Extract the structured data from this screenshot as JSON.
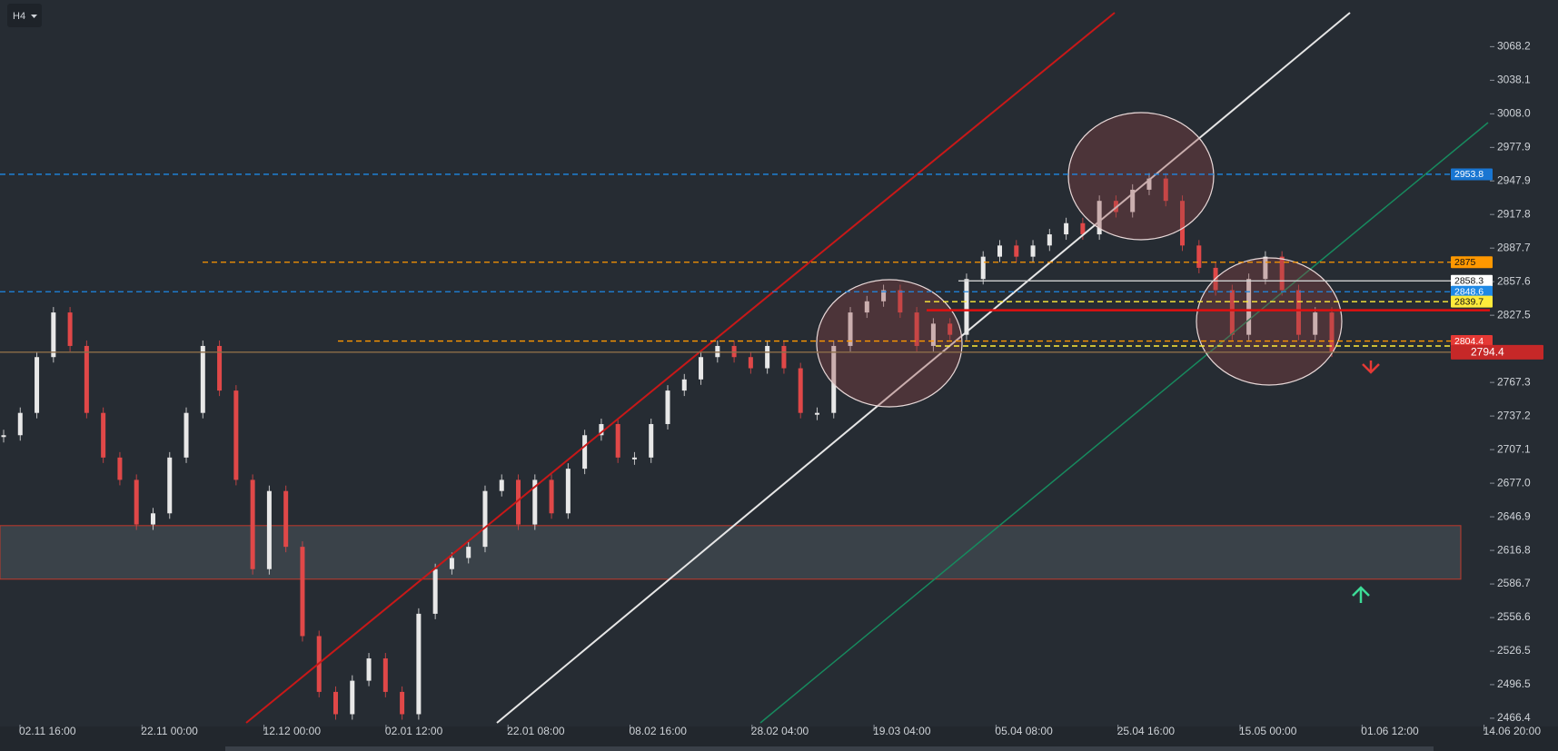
{
  "timeframe": "H4",
  "chart_data": {
    "type": "candlestick",
    "ylim": [
      2459,
      3110
    ],
    "yticks": [
      3068.2,
      3038.1,
      {
        "value": 3008,
        "label": "3008.0"
      },
      2977.9,
      2947.9,
      2917.8,
      2887.7,
      2857.6,
      2827.5,
      2767.3,
      2737.2,
      2707.1,
      {
        "value": 2677,
        "label": "2677.0"
      },
      2646.9,
      2616.8,
      2586.7,
      2556.6,
      2526.5,
      2496.5,
      2466.4
    ],
    "xticks": [
      "02.11 16:00",
      "22.11 00:00",
      "12.12 00:00",
      "02.01 12:00",
      "22.01 08:00",
      "08.02 16:00",
      "28.02 04:00",
      "19.03 04:00",
      "05.04 08:00",
      "25.04 16:00",
      "15.05 00:00",
      "01.06 12:00",
      "14.06 20:00"
    ],
    "up_color": "#e8e8e8",
    "down_color": "#e04848",
    "values": [
      2720,
      2740,
      2790,
      2830,
      2800,
      2740,
      2700,
      2680,
      2640,
      2650,
      2700,
      2740,
      2800,
      2760,
      2680,
      2600,
      2670,
      2620,
      2540,
      2490,
      2470,
      2500,
      2520,
      2490,
      2470,
      2560,
      2600,
      2610,
      2620,
      2670,
      2680,
      2640,
      2680,
      2650,
      2690,
      2720,
      2730,
      2700,
      2700,
      2730,
      2760,
      2770,
      2790,
      2800,
      2790,
      2780,
      2800,
      2780,
      2740,
      2740,
      2800,
      2830,
      2840,
      2850,
      2830,
      2800,
      2820,
      2810,
      2860,
      2880,
      2890,
      2880,
      2890,
      2900,
      2910,
      2900,
      2930,
      2920,
      2940,
      2950,
      2930,
      2890,
      2870,
      2850,
      2810,
      2860,
      2880,
      2850,
      2810,
      2830,
      2795
    ],
    "levels": [
      {
        "value": 2953.8,
        "color": "#1e88e5",
        "label_color": "#1976d2",
        "style": "dashed"
      },
      {
        "value": 2875.0,
        "color": "#ff9800",
        "label_color": "#ff9800",
        "style": "dashed"
      },
      {
        "value": 2858.3,
        "color": "#d0d0d0",
        "label_color": "#ffffff",
        "style": "solid"
      },
      {
        "value": 2848.6,
        "color": "#1e88e5",
        "label_color": "#1e88e5",
        "style": "dashed"
      },
      {
        "value": 2839.7,
        "color": "#ffeb3b",
        "label_color": "#ffeb3b",
        "style": "dashed"
      },
      {
        "value": 2804.4,
        "color": "#ff9800",
        "label_color": "#e53935",
        "style": "dashed"
      },
      {
        "value": 2794.4,
        "color": "#8d6e4a",
        "label_color": "#c62828",
        "style": "solid"
      }
    ],
    "lines": [
      {
        "value": 2832,
        "color": "#e01010",
        "style": "solid"
      },
      {
        "value": 2800,
        "color": "#ffeb3b",
        "style": "dashed"
      }
    ],
    "zone": {
      "top": 2639,
      "bottom": 2591
    }
  }
}
